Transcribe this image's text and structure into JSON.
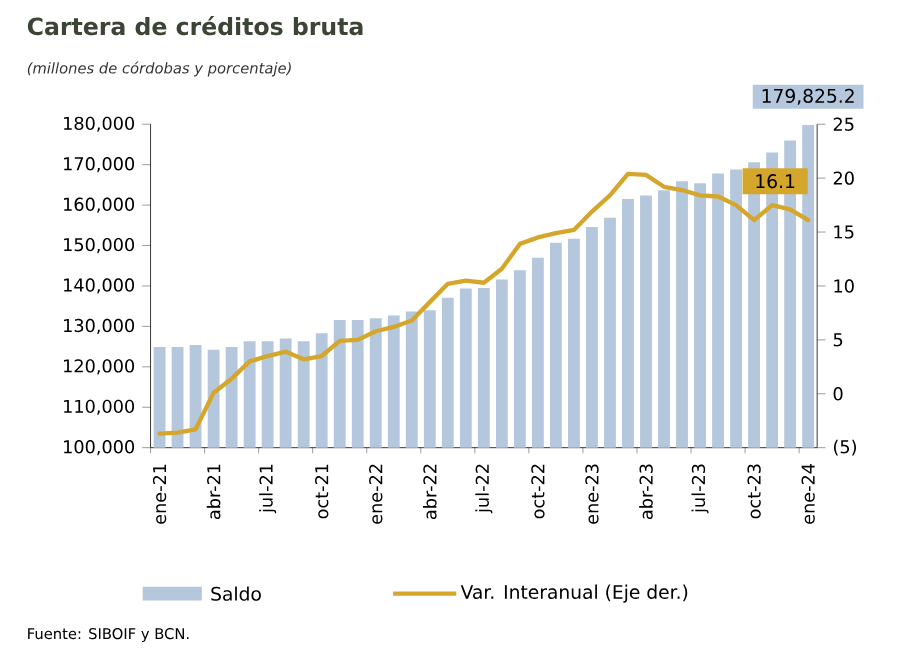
{
  "chart_data": {
    "type": "bar",
    "title": "Cartera de créditos bruta",
    "subtitle": "(millones de córdobas y porcentaje)",
    "categories": [
      "ene-21",
      null,
      null,
      "abr-21",
      null,
      null,
      "jul-21",
      null,
      null,
      "oct-21",
      null,
      null,
      "ene-22",
      null,
      null,
      "abr-22",
      null,
      null,
      "jul-22",
      null,
      null,
      "oct-22",
      null,
      null,
      "ene-23",
      null,
      null,
      "abr-23",
      null,
      null,
      "jul-23",
      null,
      null,
      "oct-23",
      null,
      null,
      "ene-24"
    ],
    "series": [
      {
        "name": "Saldo",
        "color": "#b4c7dc",
        "values": [
          124900,
          124900,
          125400,
          124200,
          124900,
          126300,
          126300,
          127000,
          126300,
          128300,
          131600,
          131600,
          132000,
          132700,
          133700,
          134000,
          137100,
          139400,
          139500,
          141600,
          143900,
          147000,
          150700,
          151700,
          154600,
          156900,
          161500,
          162400,
          163700,
          165900,
          165400,
          167800,
          168800,
          170600,
          173000,
          176000,
          179825.2
        ],
        "value_labels": [
          null,
          null,
          null,
          null,
          null,
          null,
          null,
          null,
          null,
          null,
          null,
          null,
          null,
          null,
          null,
          null,
          null,
          null,
          null,
          null,
          null,
          null,
          null,
          null,
          null,
          null,
          null,
          null,
          null,
          null,
          null,
          null,
          null,
          null,
          null,
          null,
          "179,825.2"
        ]
      },
      {
        "name": "Var. Interanual (Eje der.)",
        "type": "line",
        "axis": "y2",
        "color": "#d4a72c",
        "values": [
          -3.7,
          -3.6,
          -3.3,
          0.1,
          1.4,
          3.0,
          3.5,
          3.9,
          3.2,
          3.5,
          4.9,
          5.0,
          5.8,
          6.2,
          6.8,
          8.5,
          10.2,
          10.5,
          10.3,
          11.6,
          13.9,
          14.5,
          14.9,
          15.2,
          16.9,
          18.4,
          20.4,
          20.3,
          19.2,
          18.9,
          18.4,
          18.3,
          17.5,
          16.1,
          17.5,
          17.1,
          16.1
        ],
        "value_labels": [
          null,
          null,
          null,
          null,
          null,
          null,
          null,
          null,
          null,
          null,
          null,
          null,
          null,
          null,
          null,
          null,
          null,
          null,
          null,
          null,
          null,
          null,
          null,
          null,
          null,
          null,
          null,
          null,
          null,
          null,
          null,
          null,
          null,
          null,
          null,
          null,
          "16.1"
        ]
      }
    ],
    "ylim": [
      100000,
      180000
    ],
    "yticks": [
      {
        "value": 100000,
        "label": "100,000"
      },
      {
        "value": 110000,
        "label": "110,000"
      },
      {
        "value": 120000,
        "label": "120,000"
      },
      {
        "value": 130000,
        "label": "130,000"
      },
      {
        "value": 140000,
        "label": "140,000"
      },
      {
        "value": 150000,
        "label": "150,000"
      },
      {
        "value": 160000,
        "label": "160,000"
      },
      {
        "value": 170000,
        "label": "170,000"
      },
      {
        "value": 180000,
        "label": "180,000"
      }
    ],
    "y2lim": [
      -5,
      25
    ],
    "y2ticks": [
      {
        "value": -5,
        "label": "(5)"
      },
      0,
      5,
      10,
      15,
      20,
      25
    ],
    "legend": "bottom",
    "annotations": [
      "Fuente: SIBOIF y BCN."
    ]
  }
}
